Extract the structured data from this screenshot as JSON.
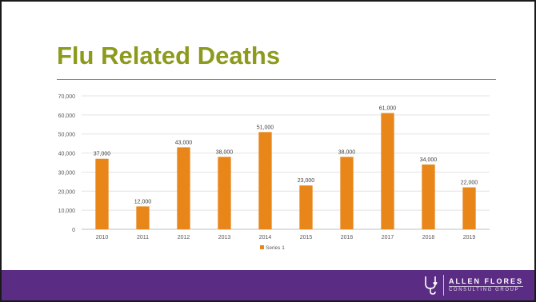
{
  "slide": {
    "title": "Flu Related Deaths"
  },
  "footer": {
    "logo_name": "ALLEN FLORES",
    "logo_tagline": "CONSULTING GROUP",
    "bar_color": "#5b2c83",
    "logo_icon": "stethoscope-heart-icon"
  },
  "chart_data": {
    "type": "bar",
    "title": "",
    "xlabel": "",
    "ylabel": "",
    "categories": [
      "2010",
      "2011",
      "2012",
      "2013",
      "2014",
      "2015",
      "2016",
      "2017",
      "2018",
      "2019"
    ],
    "series": [
      {
        "name": "Series 1",
        "color": "#e8861a",
        "values": [
          37000,
          12000,
          43000,
          38000,
          51000,
          23000,
          38000,
          61000,
          34000,
          22000
        ],
        "value_labels": [
          "37,000",
          "12,000",
          "43,000",
          "38,000",
          "51,000",
          "23,000",
          "38,000",
          "61,000",
          "34,000",
          "22,000"
        ]
      }
    ],
    "ylim": [
      0,
      70000
    ],
    "yticks": [
      0,
      10000,
      20000,
      30000,
      40000,
      50000,
      60000,
      70000
    ],
    "ytick_labels": [
      "0",
      "10,000",
      "20,000",
      "30,000",
      "40,000",
      "50,000",
      "60,000",
      "70,000"
    ],
    "grid": true,
    "legend": "bottom-center"
  }
}
